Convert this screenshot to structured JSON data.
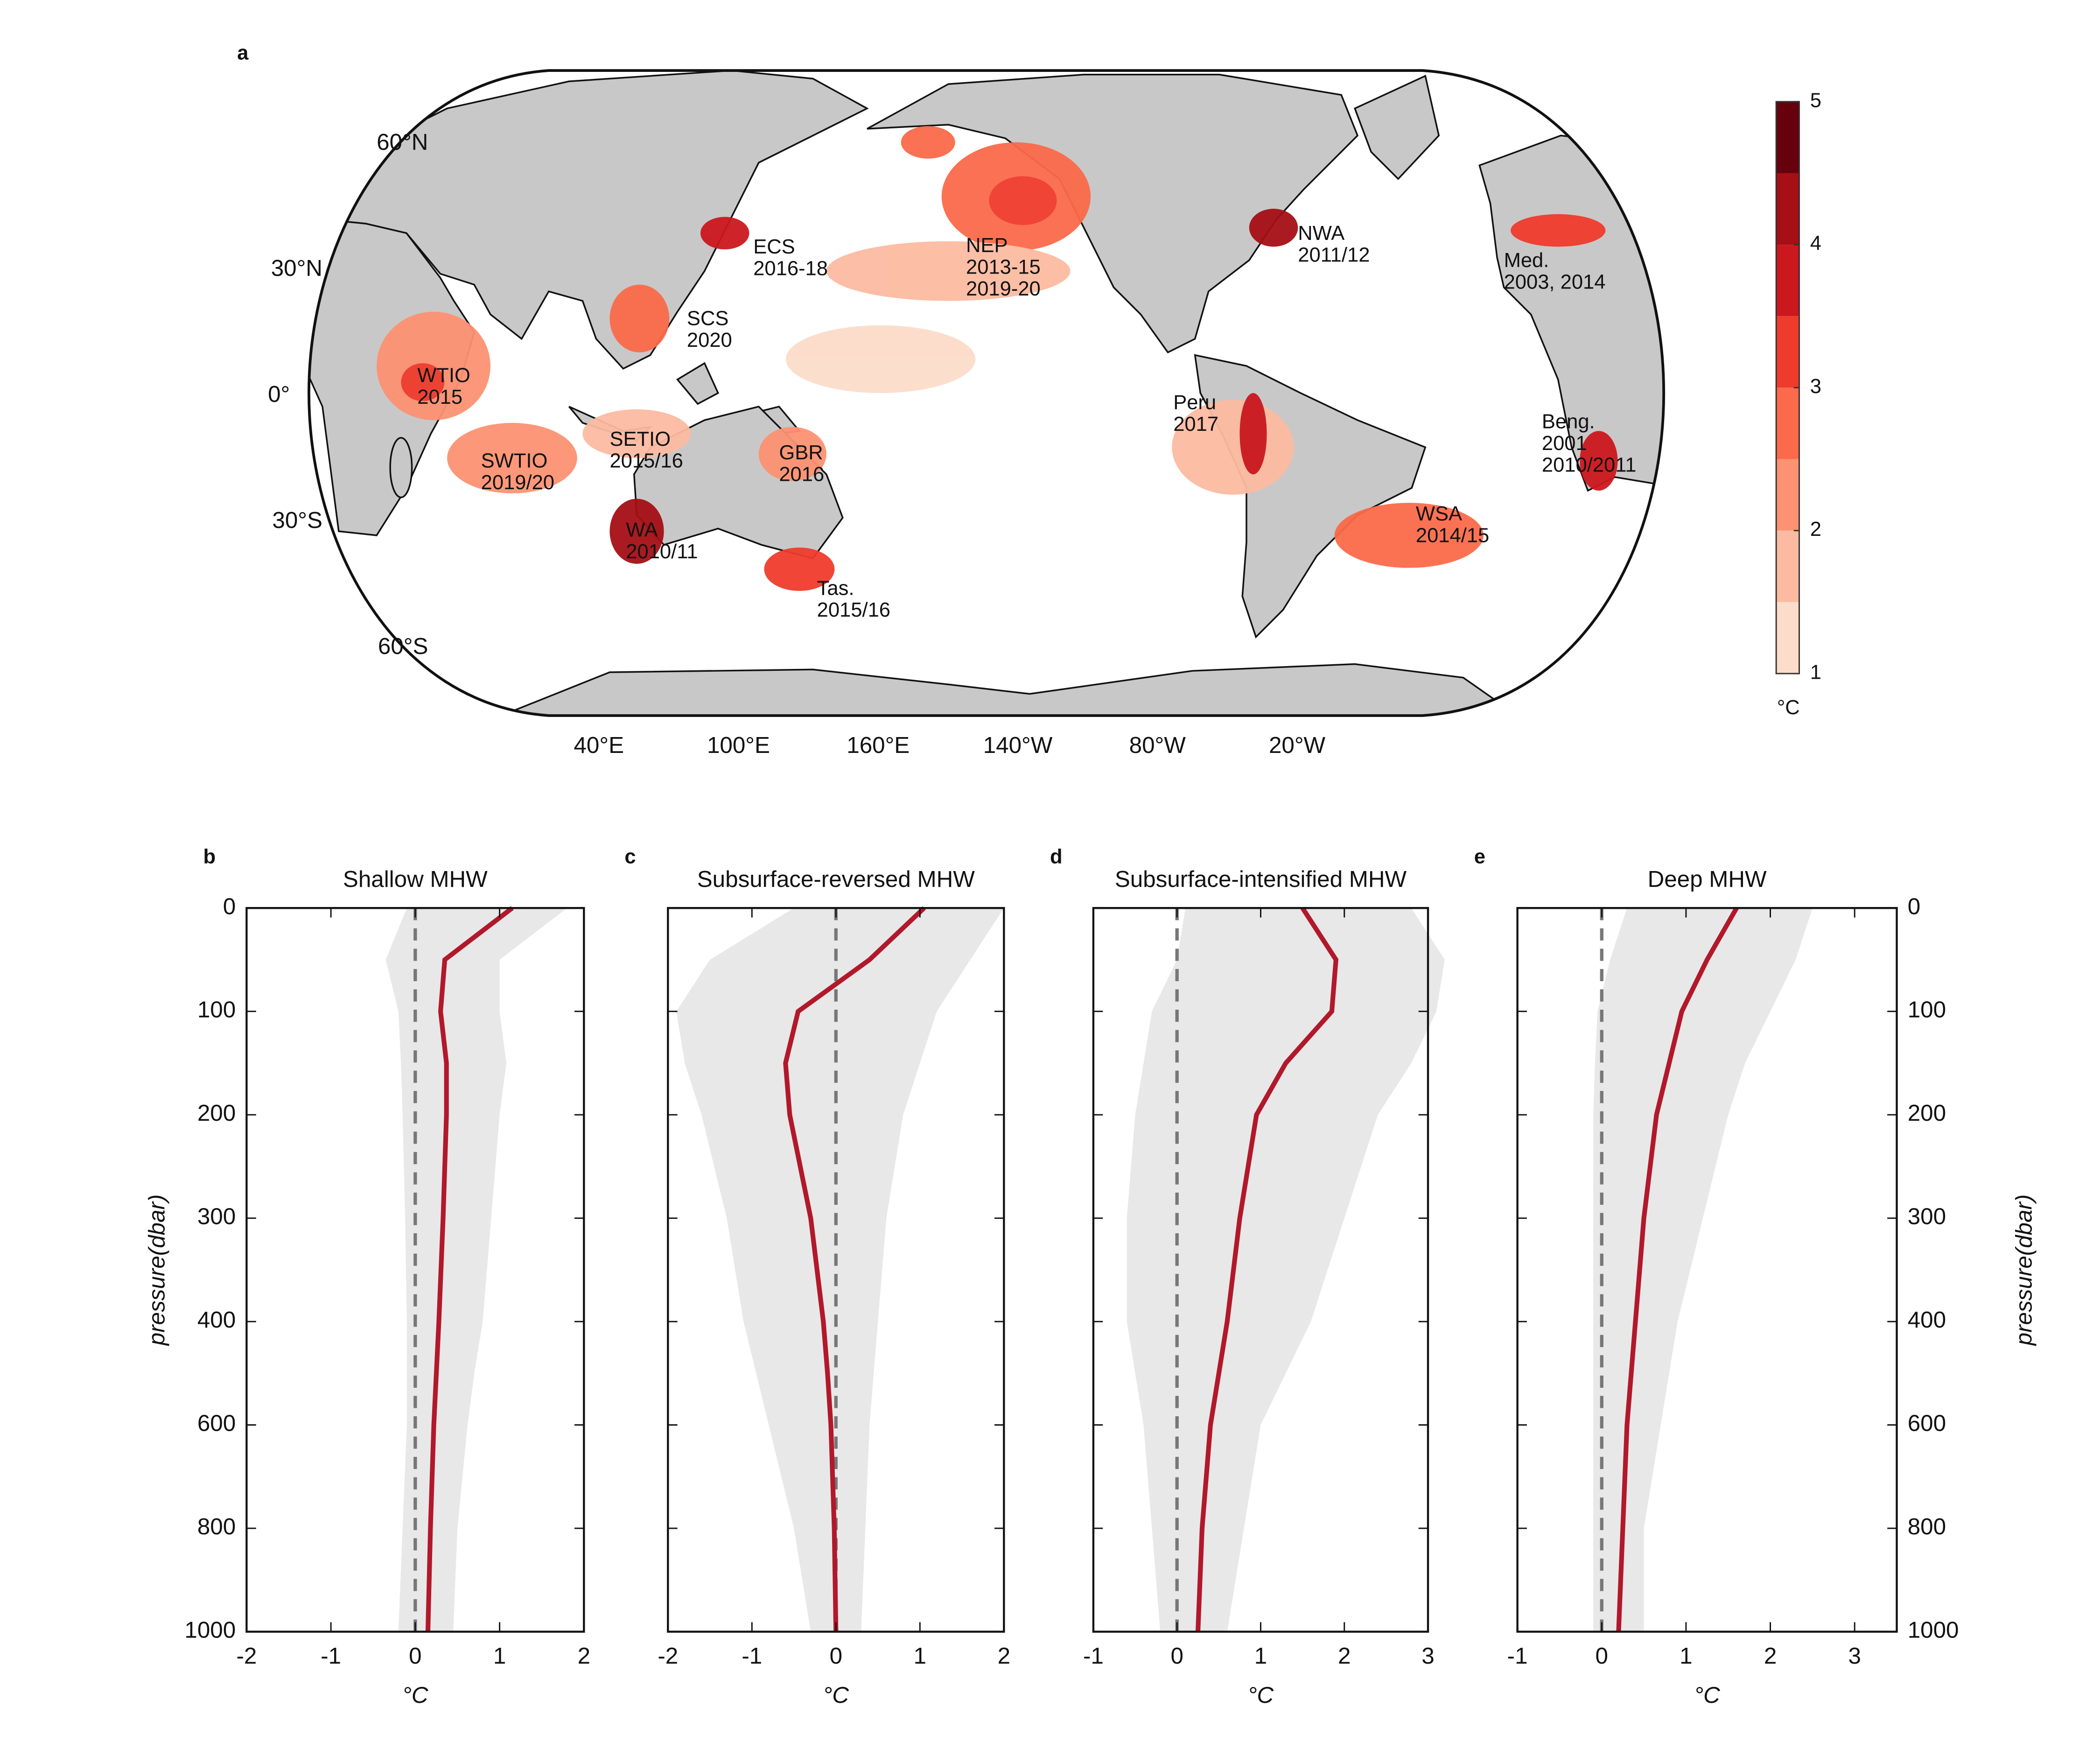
{
  "chart_data": [
    {
      "type": "map",
      "panel_label": "a",
      "lat_ticks": [
        {
          "value": 60,
          "label": "60°N"
        },
        {
          "value": 30,
          "label": "30°N"
        },
        {
          "value": 0,
          "label": "0°"
        },
        {
          "value": -30,
          "label": "30°S"
        },
        {
          "value": -60,
          "label": "60°S"
        }
      ],
      "lon_ticks": [
        {
          "value": 40,
          "label": "40°E"
        },
        {
          "value": 100,
          "label": "100°E"
        },
        {
          "value": 160,
          "label": "160°E"
        },
        {
          "value": -140,
          "label": "140°W"
        },
        {
          "value": -80,
          "label": "80°W"
        },
        {
          "value": -20,
          "label": "20°W"
        }
      ],
      "annotations": [
        {
          "lines": [
            "WTIO",
            "2015"
          ]
        },
        {
          "lines": [
            "SWTIO",
            "2019/20"
          ]
        },
        {
          "lines": [
            "SETIO",
            "2015/16"
          ]
        },
        {
          "lines": [
            "WA",
            "2010/11"
          ]
        },
        {
          "lines": [
            "Tas.",
            "2015/16"
          ]
        },
        {
          "lines": [
            "GBR",
            "2016"
          ]
        },
        {
          "lines": [
            "SCS",
            "2020"
          ]
        },
        {
          "lines": [
            "ECS",
            "2016-18"
          ]
        },
        {
          "lines": [
            "NEP",
            "2013-15",
            "2019-20"
          ]
        },
        {
          "lines": [
            "NWA",
            "2011/12"
          ]
        },
        {
          "lines": [
            "Med.",
            "2003, 2014"
          ]
        },
        {
          "lines": [
            "Peru",
            "2017"
          ]
        },
        {
          "lines": [
            "Beng.",
            "2001",
            "2010/2011"
          ]
        },
        {
          "lines": [
            "WSA",
            "2014/15"
          ]
        }
      ],
      "colorbar": {
        "levels": [
          1,
          1.5,
          2,
          2.5,
          3,
          3.5,
          4,
          4.5,
          5
        ],
        "colors": [
          "#fcdcca",
          "#fcbba1",
          "#fc9272",
          "#fb6a4a",
          "#ef3b2c",
          "#cb181d",
          "#a50f15",
          "#67000d"
        ],
        "ticks": [
          1,
          2,
          3,
          4,
          5
        ],
        "label": "°C"
      }
    },
    {
      "type": "profile",
      "panel_label": "b",
      "title": "Shallow MHW",
      "xlabel": "°C",
      "ylabel": "pressure(dbar)",
      "ytick_side": "left",
      "xlim": [
        -2,
        2
      ],
      "xticks": [
        -2,
        -1,
        0,
        1,
        2
      ],
      "ylim": [
        0,
        1000
      ],
      "yticks": [
        0,
        100,
        200,
        300,
        400,
        600,
        800,
        1000
      ],
      "reference_x": 0,
      "pressure": [
        0,
        50,
        100,
        150,
        200,
        300,
        400,
        500,
        600,
        800,
        1000
      ],
      "line": {
        "color": "#b2182b",
        "values": [
          1.15,
          0.35,
          0.3,
          0.37,
          0.37,
          0.33,
          0.28,
          0.25,
          0.22,
          0.18,
          0.15
        ]
      },
      "band": {
        "color": "#e8e8e8",
        "lower": [
          -0.1,
          -0.35,
          -0.2,
          -0.17,
          -0.15,
          -0.12,
          -0.1,
          -0.1,
          -0.1,
          -0.15,
          -0.2
        ],
        "upper": [
          1.8,
          1.0,
          1.0,
          1.08,
          1.0,
          0.9,
          0.8,
          0.7,
          0.62,
          0.5,
          0.45
        ]
      }
    },
    {
      "type": "profile",
      "panel_label": "c",
      "title": "Subsurface-reversed MHW",
      "xlabel": "°C",
      "ytick_side": "none",
      "xlim": [
        -2,
        2
      ],
      "xticks": [
        -2,
        -1,
        0,
        1,
        2
      ],
      "ylim": [
        0,
        1000
      ],
      "yticks": [
        0,
        100,
        200,
        300,
        400,
        600,
        800,
        1000
      ],
      "reference_x": 0,
      "pressure": [
        0,
        50,
        100,
        150,
        200,
        300,
        400,
        500,
        600,
        800,
        1000
      ],
      "line": {
        "color": "#b2182b",
        "values": [
          1.05,
          0.4,
          -0.45,
          -0.6,
          -0.55,
          -0.3,
          -0.15,
          -0.1,
          -0.06,
          -0.02,
          0
        ]
      },
      "band": {
        "color": "#e8e8e8",
        "lower": [
          -0.5,
          -1.5,
          -1.9,
          -1.8,
          -1.6,
          -1.3,
          -1.1,
          -0.95,
          -0.8,
          -0.5,
          -0.3
        ],
        "upper": [
          2.0,
          1.6,
          1.2,
          1.0,
          0.8,
          0.6,
          0.5,
          0.45,
          0.4,
          0.35,
          0.3
        ]
      }
    },
    {
      "type": "profile",
      "panel_label": "d",
      "title": "Subsurface-intensified MHW",
      "xlabel": "°C",
      "ytick_side": "none",
      "xlim": [
        -1,
        3
      ],
      "xticks": [
        -1,
        0,
        1,
        2,
        3
      ],
      "ylim": [
        0,
        1000
      ],
      "yticks": [
        0,
        100,
        200,
        300,
        400,
        600,
        800,
        1000
      ],
      "reference_x": 0,
      "pressure": [
        0,
        50,
        100,
        150,
        200,
        300,
        400,
        500,
        600,
        800,
        1000
      ],
      "line": {
        "color": "#b2182b",
        "values": [
          1.5,
          1.9,
          1.85,
          1.3,
          0.95,
          0.75,
          0.6,
          0.5,
          0.4,
          0.3,
          0.25
        ]
      },
      "band": {
        "color": "#e8e8e8",
        "lower": [
          0.1,
          0,
          -0.3,
          -0.4,
          -0.5,
          -0.6,
          -0.6,
          -0.5,
          -0.4,
          -0.3,
          -0.2
        ],
        "upper": [
          2.8,
          3.2,
          3.1,
          2.8,
          2.4,
          2.0,
          1.6,
          1.3,
          1.0,
          0.8,
          0.6
        ]
      }
    },
    {
      "type": "profile",
      "panel_label": "e",
      "title": "Deep MHW",
      "xlabel": "°C",
      "ylabel": "pressure(dbar)",
      "ytick_side": "right",
      "xlim": [
        -1,
        3.5
      ],
      "xticks": [
        -1,
        0,
        1,
        2,
        3
      ],
      "ylim": [
        0,
        1000
      ],
      "yticks": [
        0,
        100,
        200,
        300,
        400,
        600,
        800,
        1000
      ],
      "reference_x": 0,
      "pressure": [
        0,
        50,
        100,
        150,
        200,
        300,
        400,
        500,
        600,
        800,
        1000
      ],
      "line": {
        "color": "#b2182b",
        "values": [
          1.6,
          1.25,
          0.95,
          0.8,
          0.65,
          0.5,
          0.4,
          0.35,
          0.3,
          0.25,
          0.2
        ]
      },
      "band": {
        "color": "#e8e8e8",
        "lower": [
          0.3,
          0.1,
          -0.05,
          -0.08,
          -0.1,
          -0.1,
          -0.1,
          -0.1,
          -0.1,
          -0.1,
          -0.1
        ],
        "upper": [
          2.5,
          2.3,
          2.0,
          1.7,
          1.5,
          1.2,
          0.9,
          0.8,
          0.7,
          0.5,
          0.5
        ]
      }
    }
  ]
}
